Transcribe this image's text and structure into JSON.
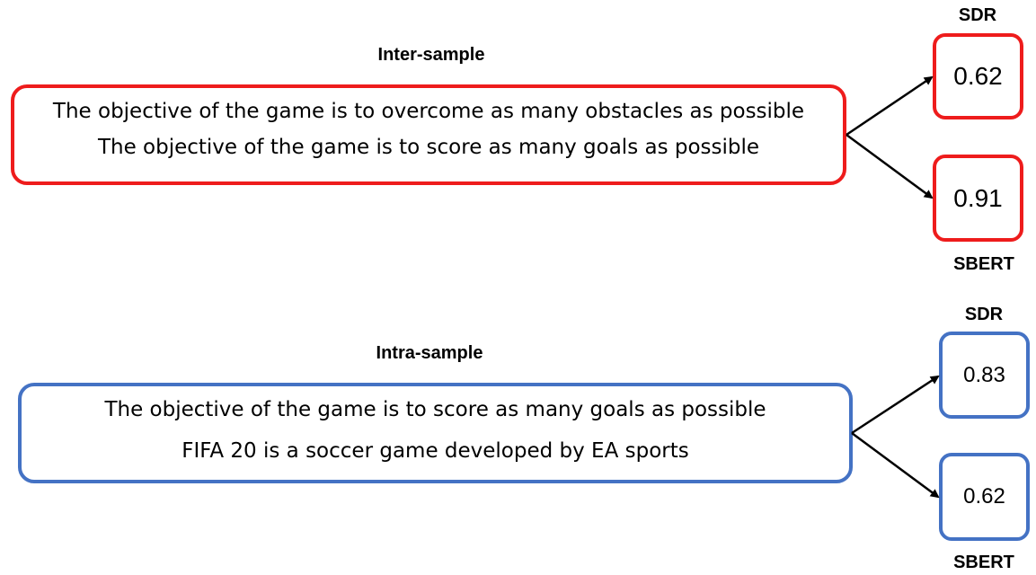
{
  "inter": {
    "title": "Inter-sample",
    "sentences": [
      "The objective of the game is to overcome as many obstacles as possible",
      "The objective of the game is to score as many goals as possible"
    ],
    "sdr_label": "SDR",
    "sdr_value": "0.62",
    "sbert_label": "SBERT",
    "sbert_value": "0.91",
    "color": "#ee1c1c"
  },
  "intra": {
    "title": "Intra-sample",
    "sentences": [
      "The objective of the game is to score as many goals as possible",
      "FIFA 20 is a soccer game developed by EA sports"
    ],
    "sdr_label": "SDR",
    "sdr_value": "0.83",
    "sbert_label": "SBERT",
    "sbert_value": "0.62",
    "color": "#4472c4"
  }
}
